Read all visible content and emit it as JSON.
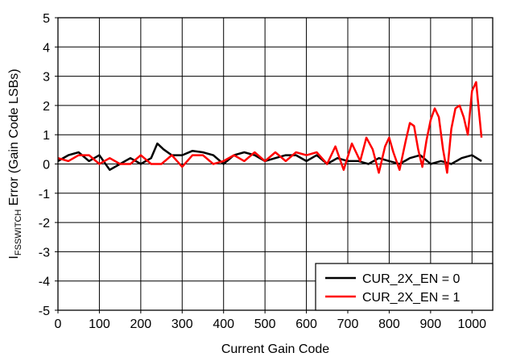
{
  "chart_data": {
    "type": "line",
    "title": "",
    "xlabel": "Current Gain Code",
    "ylabel": {
      "main": "I",
      "subscript": "FSSWITCH",
      "rest": " Error (Gain Code LSBs)"
    },
    "xlim": [
      0,
      1050
    ],
    "ylim": [
      -5,
      5
    ],
    "x_ticks": [
      0,
      100,
      200,
      300,
      400,
      500,
      600,
      700,
      800,
      900,
      1000
    ],
    "y_ticks": [
      5,
      4,
      3,
      2,
      1,
      0,
      -1,
      -2,
      -3,
      -4,
      -5
    ],
    "grid": true,
    "legend_position": "bottom-right",
    "series": [
      {
        "name": "CUR_2X_EN = 0",
        "color": "#000000",
        "x": [
          0,
          25,
          50,
          75,
          100,
          125,
          150,
          175,
          200,
          225,
          240,
          255,
          275,
          300,
          325,
          350,
          375,
          400,
          425,
          450,
          475,
          500,
          525,
          550,
          575,
          600,
          625,
          650,
          675,
          700,
          725,
          750,
          775,
          800,
          825,
          850,
          875,
          900,
          925,
          950,
          975,
          1000,
          1023
        ],
        "values": [
          0.1,
          0.3,
          0.4,
          0.1,
          0.3,
          -0.2,
          0.0,
          0.2,
          0.0,
          0.2,
          0.7,
          0.5,
          0.3,
          0.3,
          0.45,
          0.4,
          0.3,
          0.0,
          0.3,
          0.4,
          0.3,
          0.1,
          0.2,
          0.3,
          0.3,
          0.1,
          0.3,
          0.0,
          0.2,
          0.1,
          0.1,
          0.0,
          0.2,
          0.1,
          0.0,
          0.2,
          0.3,
          0.0,
          0.1,
          0.0,
          0.2,
          0.3,
          0.1
        ]
      },
      {
        "name": "CUR_2X_EN = 1",
        "color": "#ff0000",
        "x": [
          0,
          25,
          50,
          75,
          100,
          125,
          150,
          175,
          200,
          225,
          250,
          275,
          300,
          325,
          350,
          375,
          400,
          425,
          450,
          475,
          500,
          525,
          550,
          575,
          600,
          625,
          650,
          670,
          690,
          710,
          730,
          745,
          760,
          775,
          790,
          800,
          810,
          825,
          840,
          850,
          860,
          870,
          880,
          890,
          900,
          910,
          920,
          930,
          940,
          950,
          960,
          970,
          980,
          990,
          1000,
          1010,
          1023
        ],
        "values": [
          0.2,
          0.1,
          0.3,
          0.3,
          0.0,
          0.2,
          0.0,
          0.0,
          0.3,
          0.0,
          0.0,
          0.3,
          -0.1,
          0.3,
          0.3,
          0.0,
          0.1,
          0.3,
          0.1,
          0.4,
          0.1,
          0.4,
          0.1,
          0.4,
          0.3,
          0.4,
          0.0,
          0.6,
          -0.2,
          0.7,
          0.1,
          0.9,
          0.5,
          -0.3,
          0.6,
          0.9,
          0.4,
          -0.2,
          0.8,
          1.4,
          1.3,
          0.5,
          -0.1,
          0.8,
          1.5,
          1.9,
          1.6,
          0.5,
          -0.3,
          1.2,
          1.9,
          2.0,
          1.6,
          1.0,
          2.5,
          2.8,
          0.9
        ]
      }
    ]
  }
}
